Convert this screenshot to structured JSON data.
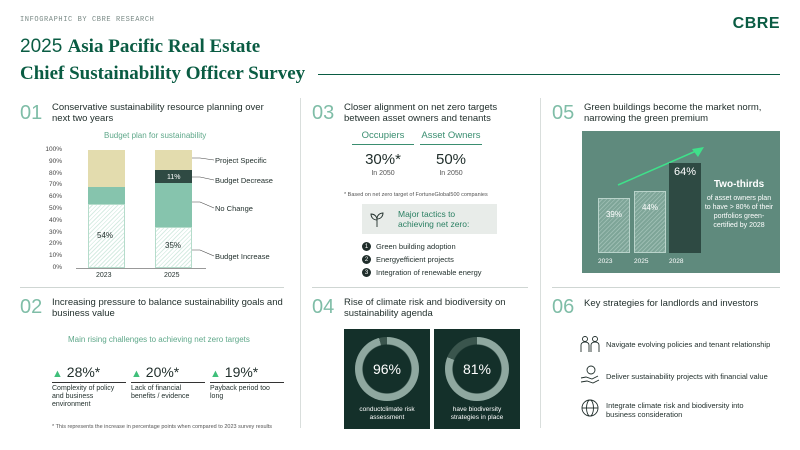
{
  "header": {
    "tag": "INFOGRAPHIC BY CBRE RESEARCH",
    "logo": "CBRE",
    "title_year": "2025",
    "title_line1": "Asia Pacific Real Estate",
    "title_line2": "Chief Sustainability Officer Survey"
  },
  "s1": {
    "num": "01",
    "title": "Conservative sustainability resource planning over next two years",
    "chart_title": "Budget plan for sustainability",
    "y_ticks": [
      "100%",
      "90%",
      "80%",
      "70%",
      "60%",
      "50%",
      "40%",
      "30%",
      "20%",
      "10%",
      "0%"
    ],
    "categories": [
      "2023",
      "2025"
    ],
    "labels": {
      "inc_2023": "54%",
      "dec_2025": "11%",
      "inc_2025": "35%"
    },
    "legend": [
      "Project Specific",
      "Budget Decrease",
      "No Change",
      "Budget Increase"
    ]
  },
  "chart_data": {
    "type": "bar",
    "stacked": true,
    "title": "Budget plan for sustainability",
    "categories": [
      "2023",
      "2025"
    ],
    "ylim": [
      0,
      100
    ],
    "series": [
      {
        "name": "Budget Increase",
        "values": [
          54,
          35
        ]
      },
      {
        "name": "No Change",
        "values": [
          15,
          37
        ]
      },
      {
        "name": "Budget Decrease",
        "values": [
          0,
          11
        ]
      },
      {
        "name": "Project Specific",
        "values": [
          31,
          17
        ]
      }
    ]
  },
  "s2": {
    "num": "02",
    "title": "Increasing pressure to balance sustainability goals and business value",
    "subtitle": "Main rising challenges to achieving net zero targets",
    "items": [
      {
        "value": "28%*",
        "label": "Complexity of policy and business environment"
      },
      {
        "value": "20%*",
        "label": "Lack of financial benefits / evidence"
      },
      {
        "value": "19%*",
        "label": "Payback period too long"
      }
    ],
    "footnote": "* This represents the increase in percentage points when compared to 2023 survey results"
  },
  "s3": {
    "num": "03",
    "title": "Closer alignment on net zero targets between asset owners and tenants",
    "col1": {
      "head": "Occupiers",
      "value": "30%*",
      "sub": "In 2050"
    },
    "col2": {
      "head": "Asset Owners",
      "value": "50%",
      "sub": "In 2050"
    },
    "footnote": "* Based on net zero target of FortuneGlobal500 companies",
    "tactics_title": "Major tactics to achieving net zero:",
    "tactics": [
      {
        "n": "1",
        "text": "Green building adoption"
      },
      {
        "n": "2",
        "text": "Energyefficient projects"
      },
      {
        "n": "3",
        "text": "Integration of renewable energy"
      }
    ]
  },
  "s4": {
    "num": "04",
    "title": "Rise of climate risk and biodiversity on sustainability agenda",
    "d1": {
      "value": "96%",
      "pct": 96,
      "label": "conductclimate risk assessment"
    },
    "d2": {
      "value": "81%",
      "pct": 81,
      "label": "have biodiversity strategies in place"
    }
  },
  "s5": {
    "num": "05",
    "title": "Green buildings become the market norm, narrowing the green premium",
    "bars": [
      {
        "year": "2023",
        "value": "39%",
        "pct": 39
      },
      {
        "year": "2025",
        "value": "44%",
        "pct": 44
      },
      {
        "year": "2028",
        "value": "64%",
        "pct": 64
      }
    ],
    "headline": "Two-thirds",
    "text": "of asset owners plan to have > 80% of their portfolios green-certified by 2028"
  },
  "s6": {
    "num": "06",
    "title": "Key strategies for landlords and investors",
    "items": [
      {
        "icon": "people-icon",
        "text": "Navigate evolving policies and tenant relationship"
      },
      {
        "icon": "hand-coin-icon",
        "text": "Deliver sustainability projects with financial value"
      },
      {
        "icon": "globe-icon",
        "text": "Integrate climate risk and biodiversity into business consideration"
      }
    ]
  },
  "colors": {
    "brand": "#0a5c43",
    "mint": "#7fbda7",
    "dark": "#14302a",
    "panel": "#5f8a7d"
  }
}
